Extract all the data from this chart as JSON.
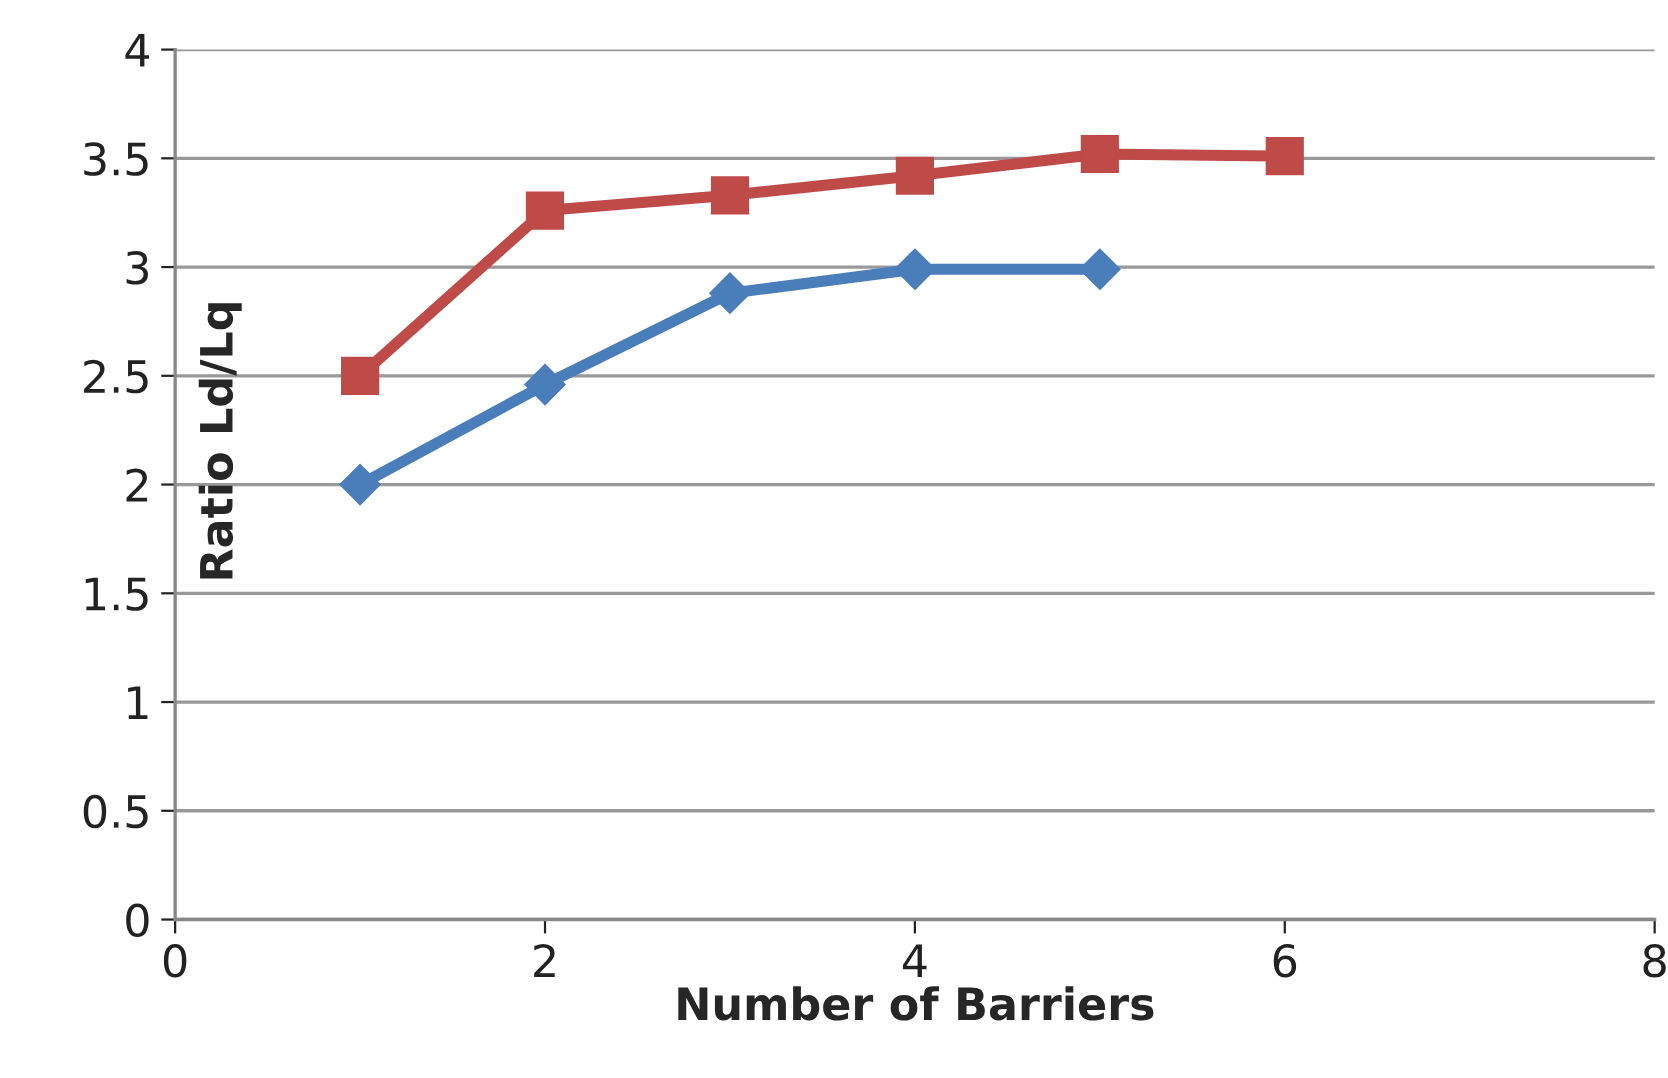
{
  "chart_data": {
    "type": "line",
    "xlabel": "Number of Barriers",
    "ylabel": "Ratio Ld/Lq",
    "xlim": [
      0,
      8
    ],
    "xticks": [
      0,
      2,
      4,
      6,
      8
    ],
    "ylim": [
      0,
      4
    ],
    "yticks": [
      0,
      0.5,
      1,
      1.5,
      2,
      2.5,
      3,
      3.5,
      4
    ],
    "grid": "y",
    "series": [
      {
        "color": "#4a7ebb",
        "marker": "diamond",
        "x": [
          1,
          2,
          3,
          4,
          5
        ],
        "values": [
          2.0,
          2.46,
          2.88,
          2.99,
          2.99
        ]
      },
      {
        "color": "#be4b48",
        "marker": "square",
        "x": [
          1,
          2,
          3,
          4,
          5,
          6
        ],
        "values": [
          2.5,
          3.26,
          3.33,
          3.42,
          3.52,
          3.51
        ]
      }
    ]
  }
}
